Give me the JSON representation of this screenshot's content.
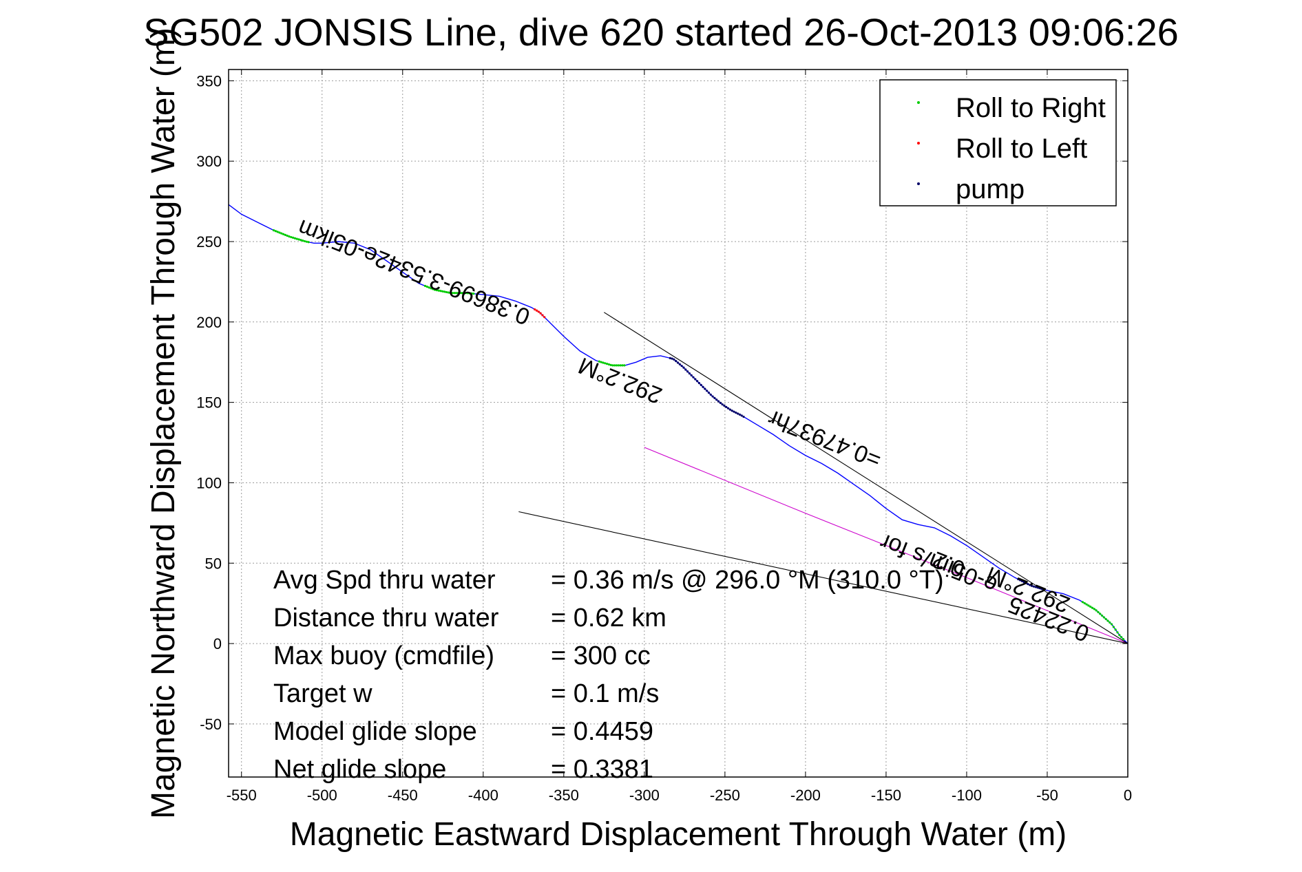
{
  "chart_data": {
    "type": "line",
    "title": "SG502 JONSIS Line, dive 620 started 26-Oct-2013 09:06:26",
    "xlabel": "Magnetic Eastward Displacement Through Water (m)",
    "ylabel": "Magnetic Northward Displacement Through Water (m)",
    "xlim": [
      -558,
      0
    ],
    "ylim": [
      -83,
      357
    ],
    "xticks": [
      -550,
      -500,
      -450,
      -400,
      -350,
      -300,
      -250,
      -200,
      -150,
      -100,
      -50,
      0
    ],
    "yticks": [
      -50,
      0,
      50,
      100,
      150,
      200,
      250,
      300,
      350
    ],
    "xtick_labels": [
      "-550",
      "-500",
      "-450",
      "-400",
      "-350",
      "-300",
      "-250",
      "-200",
      "-150",
      "-100",
      "-50",
      "0"
    ],
    "ytick_labels": [
      "-50",
      "0",
      "50",
      "100",
      "150",
      "200",
      "250",
      "300",
      "350"
    ],
    "grid": true,
    "legend_position": "top-right",
    "legend": [
      {
        "label": "Roll to Right",
        "color": "#00cc00",
        "marker": "dot"
      },
      {
        "label": "Roll to Left",
        "color": "#ff0000",
        "marker": "dot"
      },
      {
        "label": "pump",
        "color": "#000066",
        "marker": "dot"
      }
    ],
    "series": [
      {
        "color": "#0000ff",
        "x": [
          -558,
          -550,
          -540,
          -530,
          -520,
          -510,
          -505,
          -500,
          -490,
          -480,
          -470,
          -460,
          -450,
          -440,
          -430,
          -420,
          -410,
          -400,
          -390,
          -380,
          -370,
          -365,
          -360,
          -350,
          -340,
          -330,
          -320,
          -312,
          -305,
          -298,
          -290,
          -282,
          -276,
          -270,
          -264,
          -258,
          -252,
          -246,
          -240,
          -230,
          -220,
          -210,
          -200,
          -190,
          -180,
          -170,
          -160,
          -150,
          -140,
          -130,
          -120,
          -110,
          -100,
          -90,
          -80,
          -70,
          -60,
          -50,
          -40,
          -30,
          -20,
          -10,
          -5,
          0
        ],
        "y": [
          273,
          267,
          262,
          257,
          253,
          250,
          249,
          249,
          250,
          249,
          245,
          238,
          231,
          224,
          220,
          218,
          218,
          217,
          216,
          213,
          209,
          206,
          201,
          191,
          182,
          176,
          173,
          173,
          175,
          178,
          179,
          177,
          172,
          166,
          160,
          154,
          149,
          145,
          142,
          136,
          130,
          123,
          117,
          112,
          106,
          99,
          92,
          84,
          77,
          74,
          72,
          67,
          61,
          54,
          47,
          41,
          36,
          33,
          31,
          27,
          21,
          12,
          5,
          0
        ]
      },
      {
        "color": "#cc00cc",
        "x": [
          -300,
          -200,
          -100,
          -50,
          0
        ],
        "y": [
          122,
          81,
          41,
          20.5,
          0
        ]
      },
      {
        "color": "#000000",
        "x": [
          -325,
          0
        ],
        "y": [
          206,
          0
        ]
      },
      {
        "color": "#000000",
        "x": [
          -378,
          0
        ],
        "y": [
          82,
          0
        ]
      }
    ],
    "markers": [
      {
        "label": "Roll to Right",
        "color": "#00cc00",
        "x_range": [
          -530,
          -508
        ]
      },
      {
        "label": "Roll to Right",
        "color": "#00cc00",
        "x_range": [
          -436,
          -405
        ]
      },
      {
        "label": "Roll to Right",
        "color": "#00cc00",
        "x_range": [
          -328,
          -312
        ]
      },
      {
        "label": "Roll to Right",
        "color": "#00cc00",
        "x_range": [
          -28,
          -2
        ]
      },
      {
        "label": "Roll to Left",
        "color": "#ff0000",
        "x_range": [
          -368,
          -362
        ]
      },
      {
        "label": "pump",
        "color": "#000066",
        "x_range": [
          -284,
          -238
        ]
      },
      {
        "label": "pump",
        "color": "#000066",
        "x_range": [
          -68,
          -52
        ]
      }
    ],
    "rotated_annotations": [
      {
        "text": "0.38699-3.5342e-05ikm",
        "x": -370,
        "y": 207,
        "angle_deg": 21.7
      },
      {
        "text": "292.2°M",
        "x": -288,
        "y": 158,
        "angle_deg": 21.7
      },
      {
        "text": "0.22425",
        "x": -23,
        "y": 10,
        "angle_deg": 21.7
      },
      {
        "text": "292.2°M",
        "x": -35,
        "y": 28,
        "angle_deg": 21.7
      },
      {
        "text": "=0.47937hr",
        "x": -152,
        "y": 118,
        "angle_deg": 21.7
      }
    ],
    "stats": [
      {
        "label": "Avg Spd thru water",
        "value": "=  0.36 m/s @ 296.0  °M (310.0 °T)"
      },
      {
        "label": "Distance thru water",
        "value": "=  0.62 km"
      },
      {
        "label": "Max buoy (cmdfile)",
        "value": "= 300 cc"
      },
      {
        "label": "Target w",
        "value": "= 0.1 m/s"
      },
      {
        "label": "Model glide slope",
        "value": "= 0.4459"
      },
      {
        "label": "Net glide slope",
        "value": "= 0.3381"
      }
    ],
    "overlap_fragment": "e-05im/s for",
    "overlap_prefix": "0.2"
  }
}
